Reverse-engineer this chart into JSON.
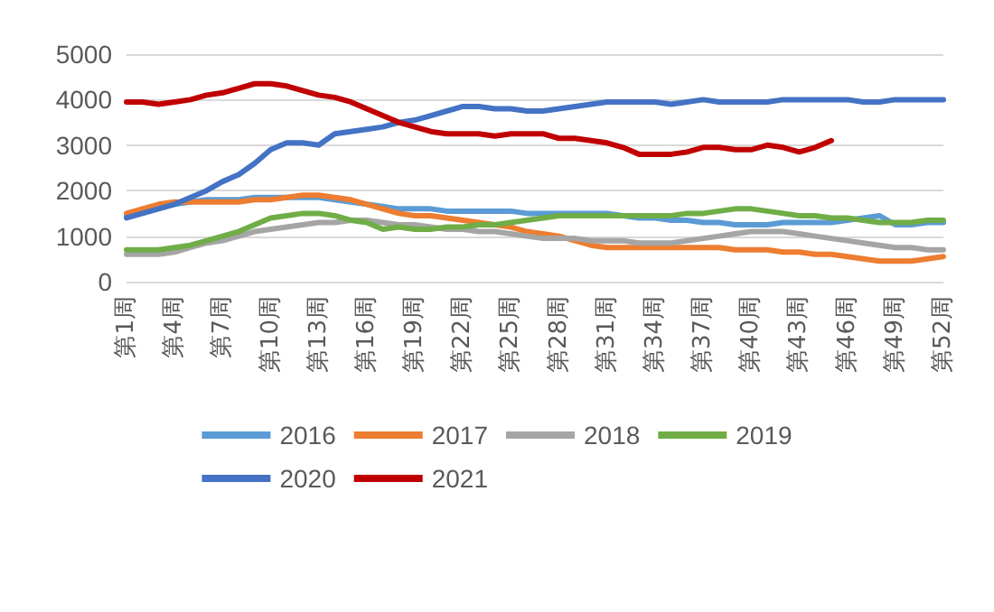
{
  "chart_data": {
    "type": "line",
    "categories": [
      "第1周",
      null,
      null,
      "第4周",
      null,
      null,
      "第7周",
      null,
      null,
      "第10周",
      null,
      null,
      "第13周",
      null,
      null,
      "第16周",
      null,
      null,
      "第19周",
      null,
      null,
      "第22周",
      null,
      null,
      "第25周",
      null,
      null,
      "第28周",
      null,
      null,
      "第31周",
      null,
      null,
      "第34周",
      null,
      null,
      "第37周",
      null,
      null,
      "第40周",
      null,
      null,
      "第43周",
      null,
      null,
      "第46周",
      null,
      null,
      "第49周",
      null,
      null,
      "第52周"
    ],
    "ylim": [
      0,
      5000
    ],
    "yticks": [
      0,
      1000,
      2000,
      3000,
      4000,
      5000
    ],
    "grid": "y",
    "legend": "bottom",
    "marker": "none",
    "line_style": "solid",
    "series": [
      {
        "name": "2016",
        "color": "#5b9bd5",
        "values": [
          1450,
          1550,
          1650,
          1700,
          1750,
          1800,
          1800,
          1800,
          1850,
          1850,
          1850,
          1850,
          1850,
          1800,
          1750,
          1700,
          1650,
          1600,
          1600,
          1600,
          1550,
          1550,
          1550,
          1550,
          1550,
          1500,
          1500,
          1500,
          1500,
          1500,
          1500,
          1450,
          1400,
          1400,
          1350,
          1350,
          1300,
          1300,
          1250,
          1250,
          1250,
          1300,
          1300,
          1300,
          1300,
          1350,
          1400,
          1450,
          1250,
          1250,
          1300,
          1300
        ]
      },
      {
        "name": "2017",
        "color": "#ed7d31",
        "values": [
          1500,
          1600,
          1700,
          1750,
          1750,
          1750,
          1750,
          1750,
          1800,
          1800,
          1850,
          1900,
          1900,
          1850,
          1800,
          1700,
          1600,
          1500,
          1450,
          1450,
          1400,
          1350,
          1300,
          1250,
          1200,
          1100,
          1050,
          1000,
          900,
          800,
          750,
          750,
          750,
          750,
          750,
          750,
          750,
          750,
          700,
          700,
          700,
          650,
          650,
          600,
          600,
          550,
          500,
          450,
          450,
          450,
          500,
          550
        ]
      },
      {
        "name": "2018",
        "color": "#a5a5a5",
        "values": [
          600,
          600,
          600,
          650,
          750,
          850,
          900,
          1000,
          1100,
          1150,
          1200,
          1250,
          1300,
          1300,
          1350,
          1350,
          1300,
          1250,
          1250,
          1200,
          1150,
          1150,
          1100,
          1100,
          1050,
          1000,
          950,
          950,
          950,
          900,
          900,
          900,
          850,
          850,
          850,
          900,
          950,
          1000,
          1050,
          1100,
          1100,
          1100,
          1050,
          1000,
          950,
          900,
          850,
          800,
          750,
          750,
          700,
          700
        ]
      },
      {
        "name": "2019",
        "color": "#70ad47",
        "values": [
          700,
          700,
          700,
          750,
          800,
          900,
          1000,
          1100,
          1250,
          1400,
          1450,
          1500,
          1500,
          1450,
          1350,
          1300,
          1150,
          1200,
          1150,
          1150,
          1200,
          1200,
          1250,
          1250,
          1300,
          1350,
          1400,
          1450,
          1450,
          1450,
          1450,
          1450,
          1450,
          1450,
          1450,
          1500,
          1500,
          1550,
          1600,
          1600,
          1550,
          1500,
          1450,
          1450,
          1400,
          1400,
          1350,
          1300,
          1300,
          1300,
          1350,
          1350
        ]
      },
      {
        "name": "2020",
        "color": "#4472c4",
        "values": [
          1400,
          1500,
          1600,
          1700,
          1850,
          2000,
          2200,
          2350,
          2600,
          2900,
          3050,
          3050,
          3000,
          3250,
          3300,
          3350,
          3400,
          3500,
          3550,
          3650,
          3750,
          3850,
          3850,
          3800,
          3800,
          3750,
          3750,
          3800,
          3850,
          3900,
          3950,
          3950,
          3950,
          3950,
          3900,
          3950,
          4000,
          3950,
          3950,
          3950,
          3950,
          4000,
          4000,
          4000,
          4000,
          4000,
          3950,
          3950,
          4000,
          4000,
          4000,
          4000
        ]
      },
      {
        "name": "2021",
        "color": "#c00000",
        "values": [
          3950,
          3950,
          3900,
          3950,
          4000,
          4100,
          4150,
          4250,
          4350,
          4350,
          4300,
          4200,
          4100,
          4050,
          3950,
          3800,
          3650,
          3500,
          3400,
          3300,
          3250,
          3250,
          3250,
          3200,
          3250,
          3250,
          3250,
          3150,
          3150,
          3100,
          3050,
          2950,
          2800,
          2800,
          2800,
          2850,
          2950,
          2950,
          2900,
          2900,
          3000,
          2950,
          2850,
          2950,
          3100,
          null,
          null,
          null,
          null,
          null,
          null,
          null
        ]
      }
    ]
  }
}
